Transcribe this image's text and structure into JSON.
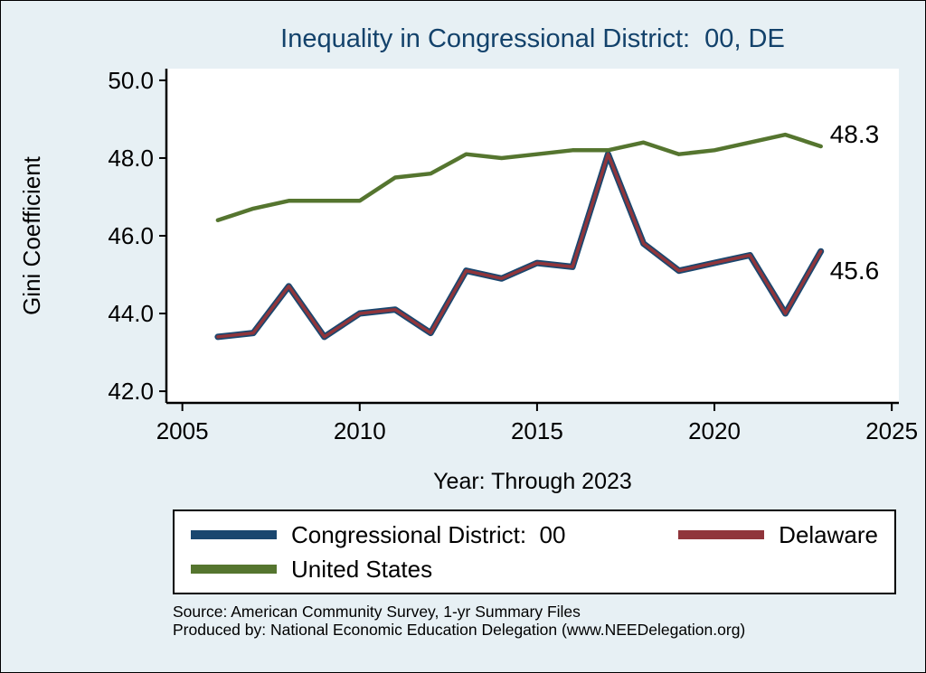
{
  "colors": {
    "background": "#e7f0f4",
    "plot_background": "#ffffff",
    "title": "#13426b",
    "axis": "#000000",
    "congressional_district": "#1a476f",
    "delaware": "#90353b",
    "united_states": "#55752f",
    "legend_border": "#000000"
  },
  "chart": {
    "title": "Inequality in Congressional District:  00, DE",
    "xlabel": "Year: Through 2023",
    "ylabel": "Gini Coefficient"
  },
  "chart_data": {
    "type": "line",
    "x": [
      2006,
      2007,
      2008,
      2009,
      2010,
      2011,
      2012,
      2013,
      2014,
      2015,
      2016,
      2017,
      2018,
      2019,
      2020,
      2021,
      2022,
      2023
    ],
    "series": [
      {
        "id": "congressional-district-00",
        "name": "Congressional District:  00",
        "color": "#1a476f",
        "line_width": 7,
        "values": [
          43.4,
          43.5,
          44.7,
          43.4,
          44.0,
          44.1,
          43.5,
          45.1,
          44.9,
          45.3,
          45.2,
          48.1,
          45.8,
          45.1,
          45.3,
          45.5,
          44.0,
          45.6
        ]
      },
      {
        "id": "delaware",
        "name": "Delaware",
        "color": "#90353b",
        "line_width": 3.5,
        "values": [
          43.4,
          43.5,
          44.7,
          43.4,
          44.0,
          44.1,
          43.5,
          45.1,
          44.9,
          45.3,
          45.2,
          48.1,
          45.8,
          45.1,
          45.3,
          45.5,
          44.0,
          45.6
        ]
      },
      {
        "id": "united-states",
        "name": "United States",
        "color": "#55752f",
        "line_width": 4.5,
        "values": [
          46.4,
          46.7,
          46.9,
          46.9,
          46.9,
          47.5,
          47.6,
          48.1,
          48.0,
          48.1,
          48.2,
          48.2,
          48.4,
          48.1,
          48.2,
          48.4,
          48.6,
          48.3
        ]
      }
    ],
    "x_axis": {
      "min": 2004.55,
      "max": 2025.2,
      "ticks": [
        {
          "value": 2005,
          "label": "2005"
        },
        {
          "value": 2010,
          "label": "2010"
        },
        {
          "value": 2015,
          "label": "2015"
        },
        {
          "value": 2020,
          "label": "2020"
        },
        {
          "value": 2025,
          "label": "2025"
        }
      ]
    },
    "y_axis": {
      "min": 41.7,
      "max": 50.3,
      "ticks": [
        {
          "value": 50.0,
          "label": "50.0"
        },
        {
          "value": 48.0,
          "label": "48.0"
        },
        {
          "value": 46.0,
          "label": "46.0"
        },
        {
          "value": 44.0,
          "label": "44.0"
        },
        {
          "value": 42.0,
          "label": "42.0"
        }
      ]
    },
    "end_labels": {
      "united_states": "48.3",
      "delaware": "45.6"
    },
    "grid": false,
    "legend_position": "bottom"
  },
  "footer": {
    "source_line": "Source: American Community Survey, 1-yr Summary Files",
    "produced_line": "Produced by: National Economic Education Delegation (www.NEEDelegation.org)"
  }
}
